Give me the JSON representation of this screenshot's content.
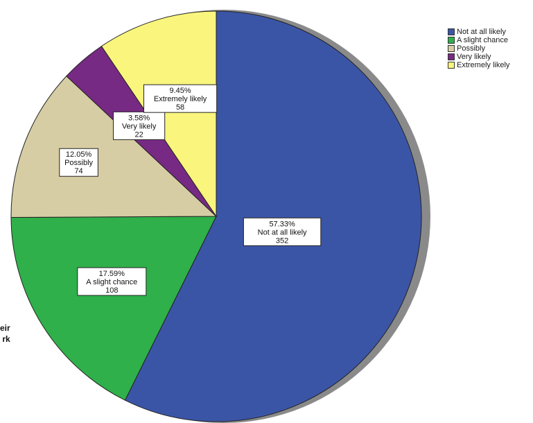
{
  "chart_data": {
    "type": "pie",
    "title": "",
    "start_angle_deg": 0,
    "direction": "clockwise",
    "slices": [
      {
        "label": "Not at all likely",
        "percent": "57.33%",
        "count": "352",
        "value": 352,
        "color": "#3b55a6"
      },
      {
        "label": "A slight chance",
        "percent": "17.59%",
        "count": "108",
        "value": 108,
        "color": "#2fb04a"
      },
      {
        "label": "Possibly",
        "percent": "12.05%",
        "count": "74",
        "value": 74,
        "color": "#d6cda4"
      },
      {
        "label": "Very likely",
        "percent": "3.58%",
        "count": "22",
        "value": 22,
        "color": "#772a83"
      },
      {
        "label": "Extremely likely",
        "percent": "9.45%",
        "count": "58",
        "value": 58,
        "color": "#f9f57d"
      }
    ],
    "legend_position": "top-right",
    "legend_entries": [
      {
        "label": "Not at all likely",
        "color": "#3b55a6"
      },
      {
        "label": "A slight chance",
        "color": "#2fb04a"
      },
      {
        "label": "Possibly",
        "color": "#d6cda4"
      },
      {
        "label": "Very likely",
        "color": "#772a83"
      },
      {
        "label": "Extremely likely",
        "color": "#f9f57d"
      }
    ]
  },
  "clipped_text": [
    "eir",
    "rk"
  ]
}
